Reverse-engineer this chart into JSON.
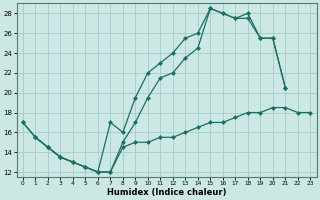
{
  "xlabel": "Humidex (Indice chaleur)",
  "xlim": [
    -0.5,
    23.5
  ],
  "ylim": [
    11.5,
    29.0
  ],
  "yticks": [
    12,
    14,
    16,
    18,
    20,
    22,
    24,
    26,
    28
  ],
  "xticks": [
    0,
    1,
    2,
    3,
    4,
    5,
    6,
    7,
    8,
    9,
    10,
    11,
    12,
    13,
    14,
    15,
    16,
    17,
    18,
    19,
    20,
    21,
    22,
    23
  ],
  "bg_color": "#cce8e5",
  "grid_color": "#aacfcc",
  "line_color": "#1a7060",
  "line1_x": [
    0,
    1,
    2,
    3,
    4,
    5,
    6,
    7,
    8,
    9,
    10,
    11,
    12,
    13,
    14,
    15,
    16,
    17,
    18,
    19,
    20,
    21
  ],
  "line1_y": [
    17,
    15.5,
    14.5,
    13.5,
    13.0,
    12.5,
    12.0,
    12.0,
    15.0,
    17.0,
    19.5,
    21.5,
    22.0,
    23.5,
    24.5,
    28.5,
    28.0,
    27.5,
    28.0,
    25.5,
    25.5,
    20.5
  ],
  "line2_x": [
    0,
    1,
    2,
    3,
    4,
    5,
    6,
    7,
    8,
    9,
    10,
    11,
    12,
    13,
    14,
    15,
    16,
    17,
    18,
    19,
    20,
    21
  ],
  "line2_y": [
    17,
    15.5,
    14.5,
    13.5,
    13.0,
    12.5,
    12.0,
    17.0,
    16.0,
    19.5,
    22.0,
    23.0,
    24.0,
    25.5,
    26.0,
    28.5,
    28.0,
    27.5,
    27.5,
    25.5,
    25.5,
    20.5
  ],
  "line3_x": [
    1,
    2,
    3,
    4,
    5,
    6,
    7,
    8,
    9,
    10,
    11,
    12,
    13,
    14,
    15,
    16,
    17,
    18,
    19,
    20,
    21,
    22,
    23
  ],
  "line3_y": [
    15.5,
    14.5,
    13.5,
    13.0,
    12.5,
    12.0,
    12.0,
    14.5,
    15.0,
    15.0,
    15.5,
    15.5,
    16.0,
    16.5,
    17.0,
    17.0,
    17.5,
    18.0,
    18.0,
    18.5,
    18.5,
    18.0,
    18.0
  ]
}
